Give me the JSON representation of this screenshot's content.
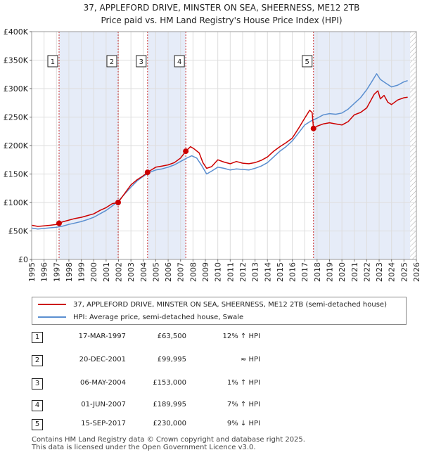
{
  "chart_data": {
    "type": "line",
    "title": "37, APPLEFORD DRIVE, MINSTER ON SEA, SHEERNESS, ME12 2TB",
    "subtitle": "Price paid vs. HM Land Registry's House Price Index (HPI)",
    "xlim": [
      1995,
      2026
    ],
    "ylim": [
      0,
      400000
    ],
    "x_ticks": [
      1995,
      1996,
      1997,
      1998,
      1999,
      2000,
      2001,
      2002,
      2003,
      2004,
      2005,
      2006,
      2007,
      2008,
      2009,
      2010,
      2011,
      2012,
      2013,
      2014,
      2015,
      2016,
      2017,
      2018,
      2019,
      2020,
      2021,
      2022,
      2023,
      2024,
      2025,
      2026
    ],
    "y_ticks": [
      {
        "value": 0,
        "label": "£0"
      },
      {
        "value": 50000,
        "label": "£50K"
      },
      {
        "value": 100000,
        "label": "£100K"
      },
      {
        "value": 150000,
        "label": "£150K"
      },
      {
        "value": 200000,
        "label": "£200K"
      },
      {
        "value": 250000,
        "label": "£250K"
      },
      {
        "value": 300000,
        "label": "£300K"
      },
      {
        "value": 350000,
        "label": "£350K"
      },
      {
        "value": 400000,
        "label": "£400K"
      }
    ],
    "shaded_spans": [
      [
        1997.21,
        2001.97
      ],
      [
        2004.34,
        2007.42
      ],
      [
        2017.71,
        2025.5
      ]
    ],
    "hatched_from": 2025.5,
    "series": [
      {
        "name": "37, APPLEFORD DRIVE, MINSTER ON SEA, SHEERNESS, ME12 2TB (semi-detached house)",
        "color": "#cc0000",
        "points": [
          [
            1995,
            60000
          ],
          [
            1995.5,
            58000
          ],
          [
            1996,
            59000
          ],
          [
            1996.5,
            60000
          ],
          [
            1997,
            61500
          ],
          [
            1997.21,
            63500
          ],
          [
            1997.5,
            66000
          ],
          [
            1998,
            69000
          ],
          [
            1998.5,
            72000
          ],
          [
            1999,
            74000
          ],
          [
            1999.5,
            77000
          ],
          [
            2000,
            80000
          ],
          [
            2000.5,
            86000
          ],
          [
            2001,
            91000
          ],
          [
            2001.5,
            98000
          ],
          [
            2001.97,
            99995
          ],
          [
            2002.3,
            110000
          ],
          [
            2002.7,
            122000
          ],
          [
            2003,
            131000
          ],
          [
            2003.5,
            140000
          ],
          [
            2004,
            147000
          ],
          [
            2004.34,
            153000
          ],
          [
            2004.7,
            158000
          ],
          [
            2005,
            162000
          ],
          [
            2005.5,
            164000
          ],
          [
            2006,
            166000
          ],
          [
            2006.5,
            170000
          ],
          [
            2007,
            178000
          ],
          [
            2007.42,
            189995
          ],
          [
            2007.8,
            198000
          ],
          [
            2008.1,
            194000
          ],
          [
            2008.5,
            187000
          ],
          [
            2008.8,
            170000
          ],
          [
            2009.1,
            160000
          ],
          [
            2009.5,
            163000
          ],
          [
            2010,
            175000
          ],
          [
            2010.5,
            171000
          ],
          [
            2011,
            168000
          ],
          [
            2011.5,
            172000
          ],
          [
            2012,
            169000
          ],
          [
            2012.5,
            168000
          ],
          [
            2013,
            170000
          ],
          [
            2013.5,
            174000
          ],
          [
            2014,
            180000
          ],
          [
            2014.5,
            190000
          ],
          [
            2015,
            198000
          ],
          [
            2015.5,
            205000
          ],
          [
            2016,
            213000
          ],
          [
            2016.5,
            230000
          ],
          [
            2017,
            248000
          ],
          [
            2017.4,
            262000
          ],
          [
            2017.6,
            258000
          ],
          [
            2017.71,
            230000
          ],
          [
            2018,
            234000
          ],
          [
            2018.5,
            238000
          ],
          [
            2019,
            240000
          ],
          [
            2019.5,
            238000
          ],
          [
            2020,
            236000
          ],
          [
            2020.5,
            242000
          ],
          [
            2021,
            254000
          ],
          [
            2021.5,
            258000
          ],
          [
            2022,
            266000
          ],
          [
            2022.3,
            278000
          ],
          [
            2022.6,
            290000
          ],
          [
            2022.9,
            296000
          ],
          [
            2023.1,
            282000
          ],
          [
            2023.4,
            288000
          ],
          [
            2023.7,
            276000
          ],
          [
            2024,
            272000
          ],
          [
            2024.5,
            280000
          ],
          [
            2025,
            284000
          ],
          [
            2025.3,
            285000
          ]
        ]
      },
      {
        "name": "HPI: Average price, semi-detached house, Swale",
        "color": "#5b8fd0",
        "points": [
          [
            1995,
            55000
          ],
          [
            1995.5,
            53500
          ],
          [
            1996,
            54500
          ],
          [
            1996.5,
            55500
          ],
          [
            1997,
            56500
          ],
          [
            1997.5,
            58500
          ],
          [
            1998,
            61500
          ],
          [
            1998.5,
            64000
          ],
          [
            1999,
            66500
          ],
          [
            1999.5,
            70000
          ],
          [
            2000,
            74000
          ],
          [
            2000.5,
            80000
          ],
          [
            2001,
            86000
          ],
          [
            2001.5,
            94000
          ],
          [
            2002,
            103000
          ],
          [
            2002.5,
            115000
          ],
          [
            2003,
            127000
          ],
          [
            2003.5,
            138000
          ],
          [
            2004,
            146000
          ],
          [
            2004.5,
            153000
          ],
          [
            2005,
            157000
          ],
          [
            2005.5,
            159000
          ],
          [
            2006,
            162000
          ],
          [
            2006.5,
            166000
          ],
          [
            2007,
            172000
          ],
          [
            2007.5,
            178000
          ],
          [
            2007.9,
            182000
          ],
          [
            2008.3,
            178000
          ],
          [
            2008.7,
            165000
          ],
          [
            2009.1,
            150000
          ],
          [
            2009.5,
            155000
          ],
          [
            2010,
            162000
          ],
          [
            2010.5,
            160000
          ],
          [
            2011,
            157000
          ],
          [
            2011.5,
            159000
          ],
          [
            2012,
            158000
          ],
          [
            2012.5,
            157000
          ],
          [
            2013,
            160000
          ],
          [
            2013.5,
            164000
          ],
          [
            2014,
            170000
          ],
          [
            2014.5,
            180000
          ],
          [
            2015,
            190000
          ],
          [
            2015.5,
            198000
          ],
          [
            2016,
            208000
          ],
          [
            2016.5,
            222000
          ],
          [
            2017,
            236000
          ],
          [
            2017.5,
            243000
          ],
          [
            2018,
            248000
          ],
          [
            2018.5,
            254000
          ],
          [
            2019,
            256000
          ],
          [
            2019.5,
            255000
          ],
          [
            2020,
            257000
          ],
          [
            2020.5,
            264000
          ],
          [
            2021,
            274000
          ],
          [
            2021.5,
            284000
          ],
          [
            2022,
            298000
          ],
          [
            2022.4,
            312000
          ],
          [
            2022.8,
            326000
          ],
          [
            2023.1,
            316000
          ],
          [
            2023.5,
            310000
          ],
          [
            2024,
            303000
          ],
          [
            2024.5,
            306000
          ],
          [
            2025,
            312000
          ],
          [
            2025.3,
            314000
          ]
        ]
      }
    ],
    "sales": [
      {
        "num": "1",
        "year": 1997.21,
        "price": 63500
      },
      {
        "num": "2",
        "year": 2001.97,
        "price": 99995
      },
      {
        "num": "3",
        "year": 2004.34,
        "price": 153000
      },
      {
        "num": "4",
        "year": 2007.42,
        "price": 189995
      },
      {
        "num": "5",
        "year": 2017.71,
        "price": 230000
      }
    ]
  },
  "legend": {
    "property_label": "37, APPLEFORD DRIVE, MINSTER ON SEA, SHEERNESS, ME12 2TB (semi-detached house)",
    "hpi_label": "HPI: Average price, semi-detached house, Swale"
  },
  "transactions": [
    {
      "num": "1",
      "date": "17-MAR-1997",
      "price": "£63,500",
      "hpi": "12% ↑ HPI"
    },
    {
      "num": "2",
      "date": "20-DEC-2001",
      "price": "£99,995",
      "hpi": "≈ HPI"
    },
    {
      "num": "3",
      "date": "06-MAY-2004",
      "price": "£153,000",
      "hpi": "1% ↑ HPI"
    },
    {
      "num": "4",
      "date": "01-JUN-2007",
      "price": "£189,995",
      "hpi": "7% ↑ HPI"
    },
    {
      "num": "5",
      "date": "15-SEP-2017",
      "price": "£230,000",
      "hpi": "9% ↓ HPI"
    }
  ],
  "footer": {
    "line1": "Contains HM Land Registry data © Crown copyright and database right 2025.",
    "line2": "This data is licensed under the Open Government Licence v3.0."
  }
}
